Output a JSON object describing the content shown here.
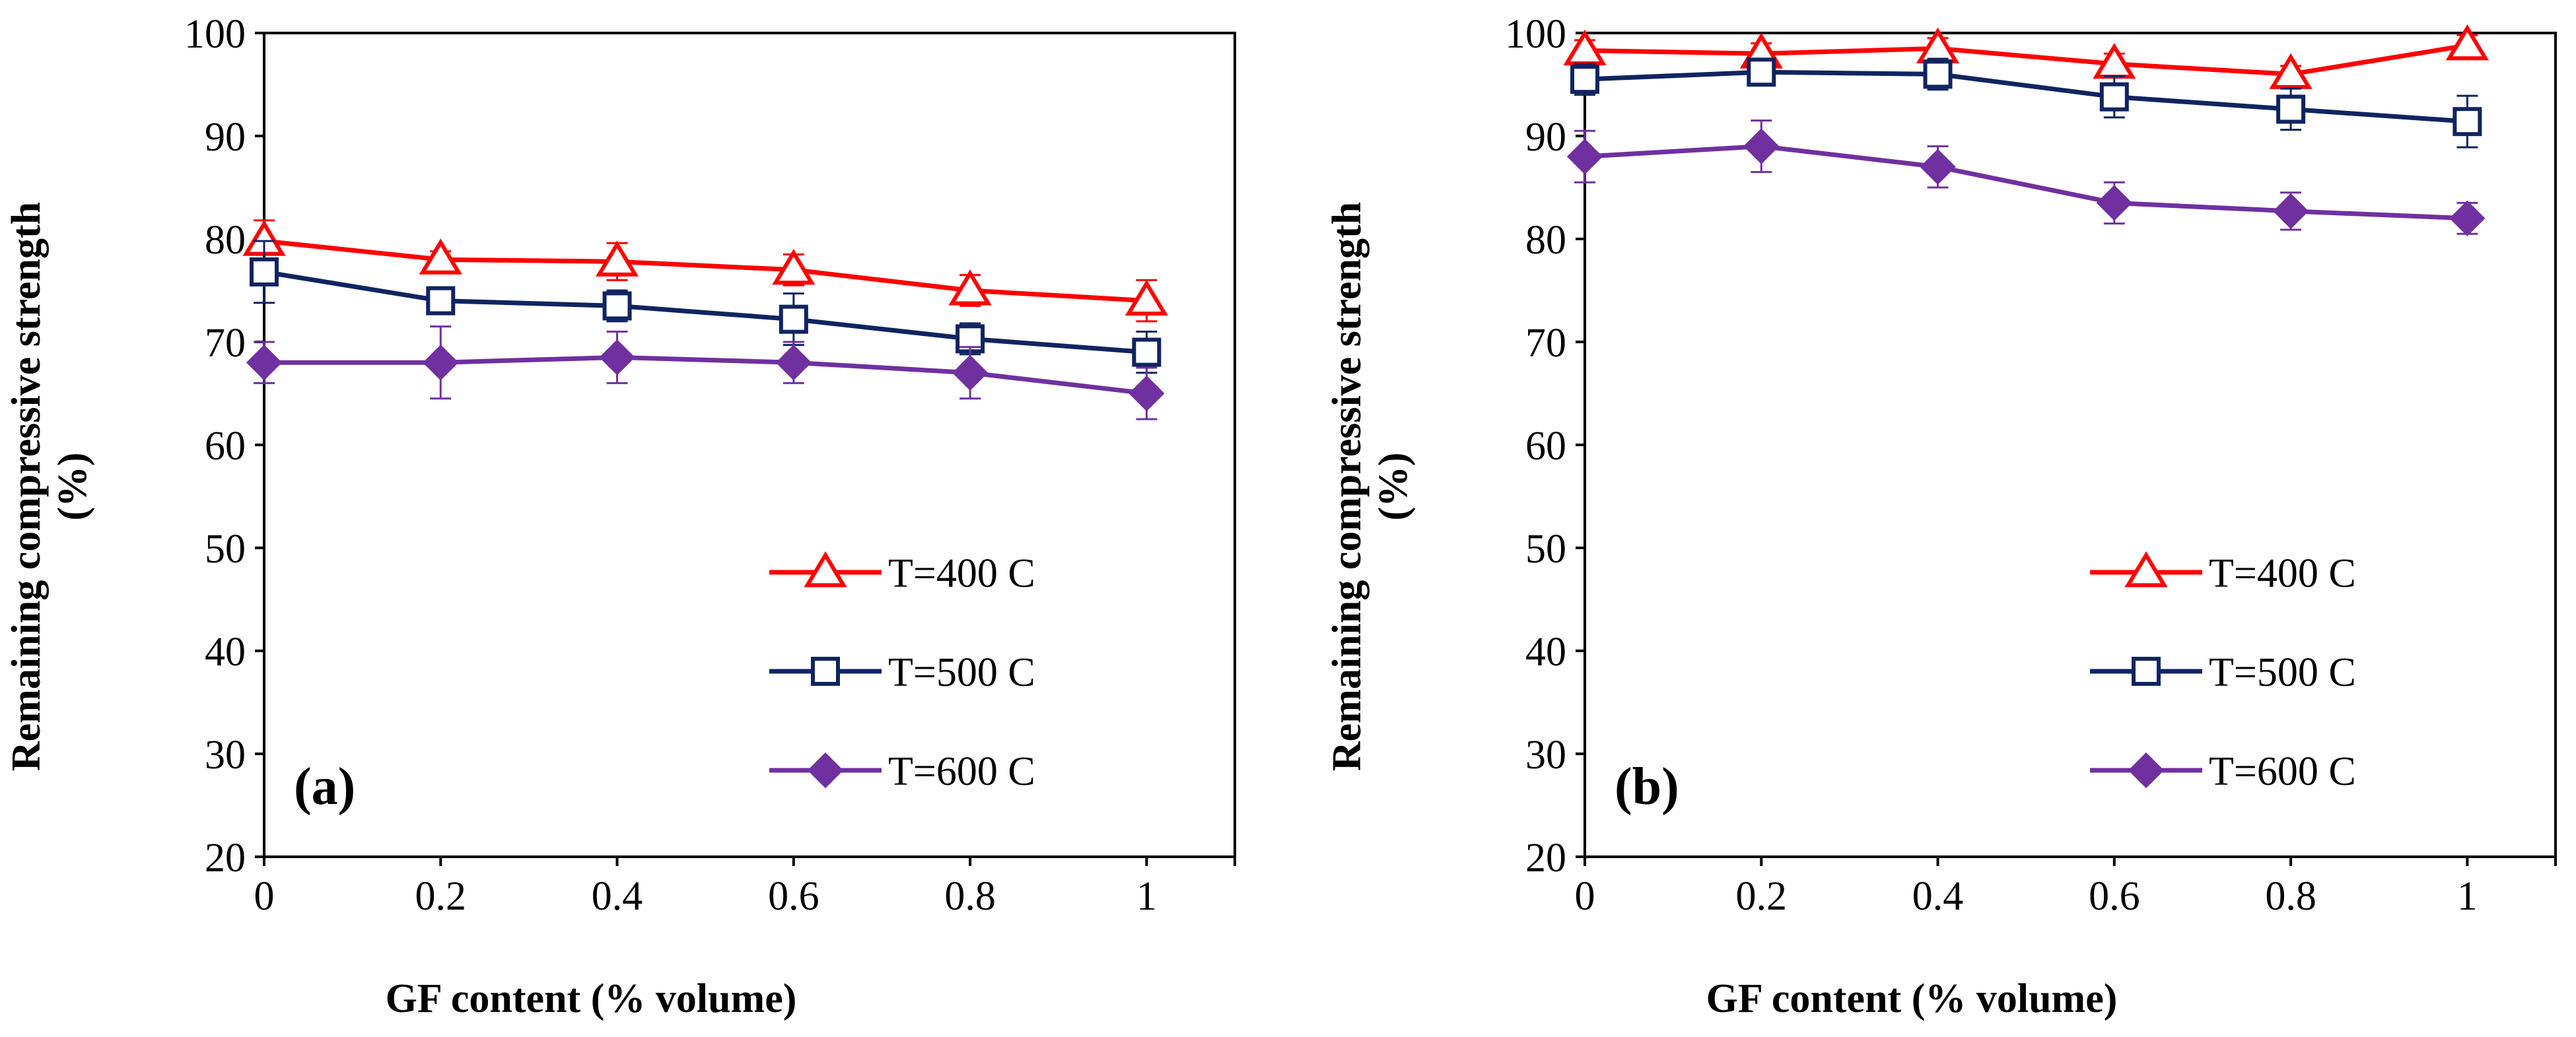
{
  "colors": {
    "t400": "#ff0000",
    "t500": "#0f2461",
    "t600": "#7030a0",
    "axis": "#000000",
    "background": "#ffffff"
  },
  "chart_data": [
    {
      "type": "line",
      "panel_label": "(a)",
      "xlabel": "GF content (% volume)",
      "ylabel_line1": "Remaining compressive strength",
      "ylabel_line2": "(%)",
      "x": [
        0,
        0.2,
        0.4,
        0.6,
        0.8,
        1
      ],
      "xlim": [
        0,
        1.1
      ],
      "ylim": [
        20,
        100
      ],
      "x_ticks": [
        0,
        0.2,
        0.4,
        0.6,
        0.8,
        1
      ],
      "x_tick_labels": [
        "0",
        "0.2",
        "0.4",
        "0.6",
        "0.8",
        "1"
      ],
      "y_ticks": [
        20,
        30,
        40,
        50,
        60,
        70,
        80,
        90,
        100
      ],
      "y_tick_labels": [
        "20",
        "30",
        "40",
        "50",
        "60",
        "70",
        "80",
        "90",
        "100"
      ],
      "grid": false,
      "legend_position": "lower-right",
      "series": [
        {
          "name": "T=400 C",
          "marker": "triangle",
          "color": "#ff0000",
          "values": [
            79.8,
            78,
            77.8,
            77,
            75,
            74
          ],
          "errors": [
            2,
            0.8,
            1.8,
            1.5,
            1.5,
            2
          ]
        },
        {
          "name": "T=500 C",
          "marker": "square",
          "color": "#0f2461",
          "values": [
            76.8,
            74,
            73.5,
            72.2,
            70.3,
            69
          ],
          "errors": [
            3,
            1,
            1.5,
            2.5,
            1.5,
            2
          ]
        },
        {
          "name": "T=600 C",
          "marker": "diamond",
          "color": "#7030a0",
          "values": [
            68,
            68,
            68.5,
            68,
            67,
            65
          ],
          "errors": [
            2,
            3.5,
            2.5,
            2,
            2.5,
            2.5
          ]
        }
      ]
    },
    {
      "type": "line",
      "panel_label": "(b)",
      "xlabel": "GF content (% volume)",
      "ylabel_line1": "Remaining compressive strength",
      "ylabel_line2": "(%)",
      "x": [
        0,
        0.2,
        0.4,
        0.6,
        0.8,
        1
      ],
      "xlim": [
        0,
        1.1
      ],
      "ylim": [
        20,
        100
      ],
      "x_ticks": [
        0,
        0.2,
        0.4,
        0.6,
        0.8,
        1
      ],
      "x_tick_labels": [
        "0",
        "0.2",
        "0.4",
        "0.6",
        "0.8",
        "1"
      ],
      "y_ticks": [
        20,
        30,
        40,
        50,
        60,
        70,
        80,
        90,
        100
      ],
      "y_tick_labels": [
        "20",
        "30",
        "40",
        "50",
        "60",
        "70",
        "80",
        "90",
        "100"
      ],
      "grid": false,
      "legend_position": "lower-right",
      "series": [
        {
          "name": "T=400 C",
          "marker": "triangle",
          "color": "#ff0000",
          "values": [
            98.3,
            98,
            98.5,
            97,
            96,
            98.8
          ],
          "errors": [
            1,
            1,
            1,
            1,
            0.8,
            1
          ]
        },
        {
          "name": "T=500 C",
          "marker": "square",
          "color": "#0f2461",
          "values": [
            95.5,
            96.2,
            96,
            93.8,
            92.6,
            91.4
          ],
          "errors": [
            1.5,
            1,
            1.5,
            2,
            2,
            2.5
          ]
        },
        {
          "name": "T=600 C",
          "marker": "diamond",
          "color": "#7030a0",
          "values": [
            88,
            89,
            87,
            83.5,
            82.7,
            82
          ],
          "errors": [
            2.5,
            2.5,
            2,
            2,
            1.8,
            1.5
          ]
        }
      ]
    }
  ]
}
